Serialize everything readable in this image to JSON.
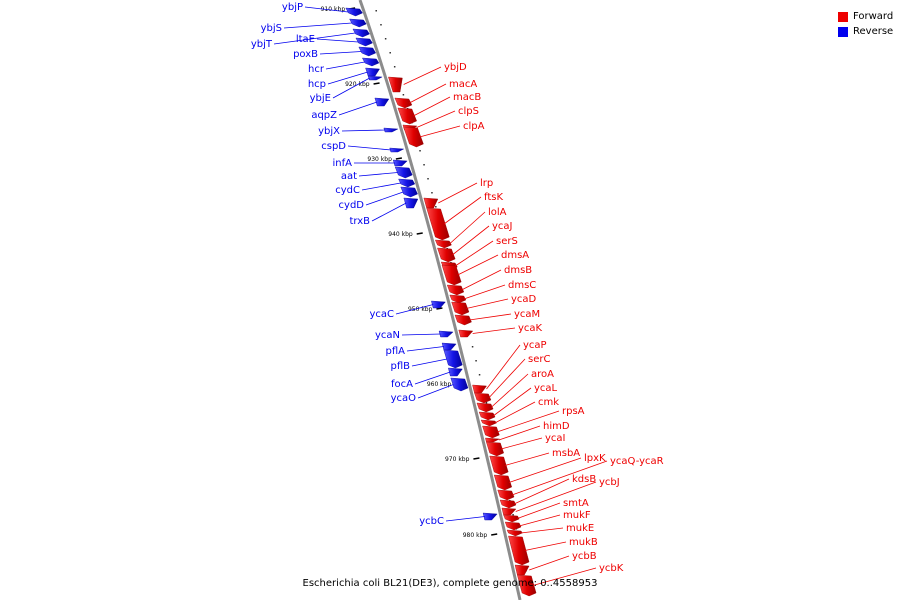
{
  "legend": {
    "forward_label": "Forward",
    "reverse_label": "Reverse",
    "forward_color": "#ee0000",
    "reverse_color": "#0000ee"
  },
  "caption": {
    "text": "Escherichia coli BL21(DE3), complete genome: 0..4558953"
  },
  "colors": {
    "backbone": "#8c8c8c",
    "tick": "#000000"
  },
  "scale_ticks": [
    "910 kbp",
    "920 kbp",
    "930 kbp",
    "940 kbp",
    "950 kbp",
    "960 kbp",
    "970 kbp",
    "980 kbp"
  ],
  "genes_reverse": [
    "ybjP",
    "ybjS",
    "ybjT",
    "ltaE",
    "poxB",
    "hcr",
    "hcp",
    "ybjE",
    "aqpZ",
    "ybjX",
    "cspD",
    "infA",
    "aat",
    "cydC",
    "cydD",
    "trxB",
    "ycaC",
    "ycaN",
    "pflA",
    "pflB",
    "focA",
    "ycaO",
    "ycbC"
  ],
  "genes_forward": [
    "ybjD",
    "macA",
    "macB",
    "clpS",
    "clpA",
    "lrp",
    "ftsK",
    "lolA",
    "ycaJ",
    "serS",
    "dmsA",
    "dmsB",
    "dmsC",
    "ycaD",
    "ycaM",
    "ycaK",
    "ycaP",
    "serC",
    "aroA",
    "ycaL",
    "cmk",
    "rpsA",
    "himD",
    "ycaI",
    "msbA",
    "lpxK",
    "ycaQ-ycaR",
    "kdsB",
    "ycbJ",
    "smtA",
    "mukF",
    "mukE",
    "mukB",
    "ycbB",
    "ycbK"
  ]
}
